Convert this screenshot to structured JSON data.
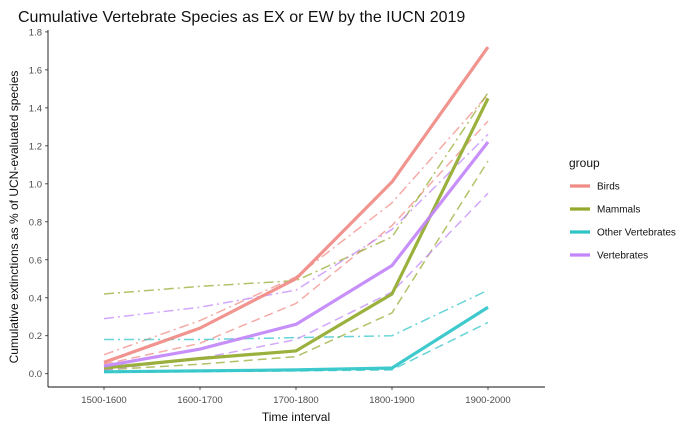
{
  "chart_data": {
    "type": "line",
    "title": "Cumulative Vertebrate Species as EX or EW by the IUCN 2019",
    "xlabel": "Time interval",
    "ylabel": "Cumulative extinctions as % of UCN-evaluated species",
    "categories": [
      "1500-1600",
      "1600-1700",
      "1700-1800",
      "1800-1900",
      "1900-2000"
    ],
    "ylim": [
      -0.07,
      1.81
    ],
    "yticks": [
      "0.0",
      "0.2",
      "0.4",
      "0.6",
      "0.8",
      "1.0",
      "1.2",
      "1.4",
      "1.6",
      "1.8"
    ],
    "grid": false,
    "legend": {
      "title": "group",
      "position": "right",
      "entries": [
        "Birds",
        "Mammals",
        "Other Vertebrates",
        "Vertebrates"
      ]
    },
    "colors": {
      "Birds": "#F08A84",
      "Mammals": "#93AA2C",
      "Other Vertebrates": "#2EC4C8",
      "Vertebrates": "#C285FA"
    },
    "series": [
      {
        "name": "Birds",
        "values": [
          0.06,
          0.24,
          0.5,
          1.01,
          1.72
        ]
      },
      {
        "name": "Mammals",
        "values": [
          0.03,
          0.08,
          0.12,
          0.42,
          1.45
        ]
      },
      {
        "name": "Other Vertebrates",
        "values": [
          0.01,
          0.015,
          0.02,
          0.03,
          0.35
        ]
      },
      {
        "name": "Vertebrates",
        "values": [
          0.04,
          0.13,
          0.26,
          0.57,
          1.22
        ]
      }
    ],
    "bound_lines": [
      {
        "group": "Birds",
        "style": "dashdot",
        "values": [
          0.1,
          0.28,
          0.51,
          0.9,
          1.47
        ]
      },
      {
        "group": "Birds",
        "style": "dashed",
        "values": [
          0.05,
          0.16,
          0.37,
          0.78,
          1.33
        ]
      },
      {
        "group": "Mammals",
        "style": "dashdot",
        "values": [
          0.42,
          0.46,
          0.49,
          0.72,
          1.48
        ]
      },
      {
        "group": "Mammals",
        "style": "dashed",
        "values": [
          0.02,
          0.05,
          0.09,
          0.32,
          1.12
        ]
      },
      {
        "group": "Other Vertebrates",
        "style": "dashdot",
        "values": [
          0.18,
          0.18,
          0.19,
          0.2,
          0.44
        ]
      },
      {
        "group": "Other Vertebrates",
        "style": "dashed",
        "values": [
          0.01,
          0.012,
          0.015,
          0.02,
          0.27
        ]
      },
      {
        "group": "Vertebrates",
        "style": "dashdot",
        "values": [
          0.29,
          0.35,
          0.44,
          0.76,
          1.26
        ]
      },
      {
        "group": "Vertebrates",
        "style": "dashed",
        "values": [
          0.02,
          0.08,
          0.18,
          0.43,
          0.95
        ]
      }
    ]
  }
}
